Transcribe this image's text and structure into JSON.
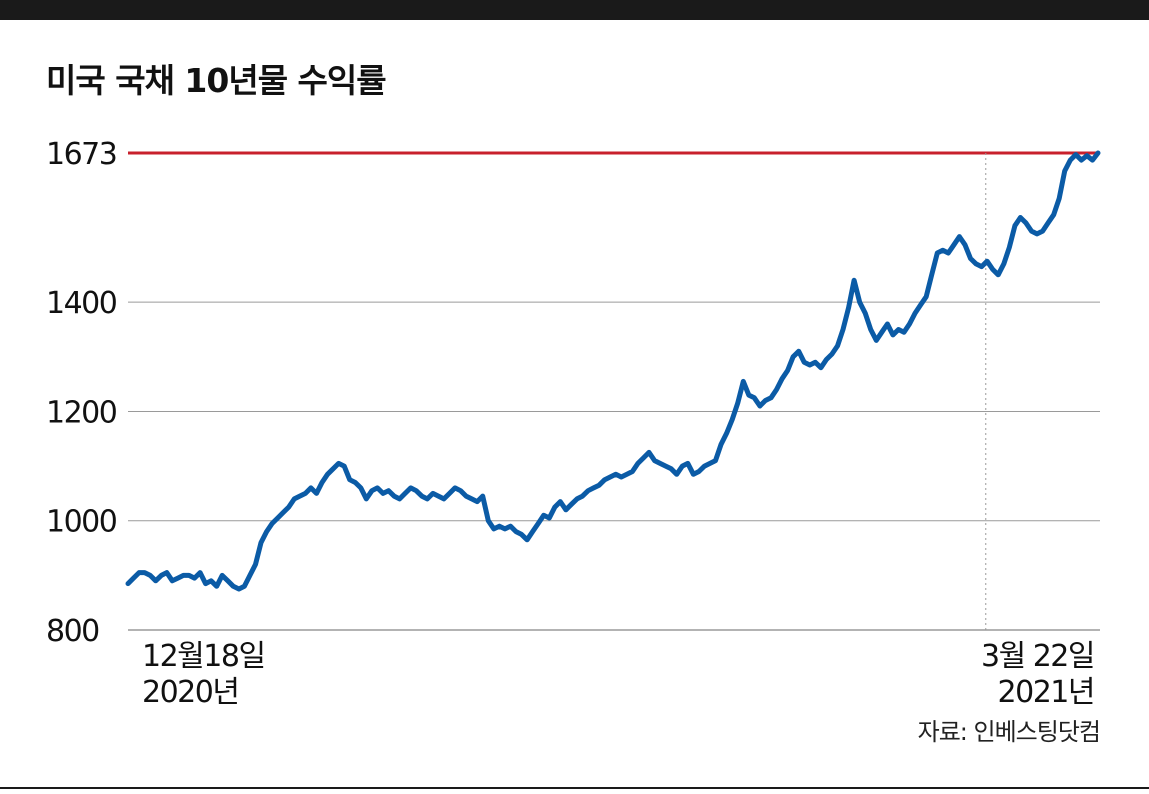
{
  "colors": {
    "line": "#0b5ba6",
    "reference_line": "#c8202c",
    "grid": "#9a9a9a",
    "text": "#111111",
    "top_bar": "#1a1a1a"
  },
  "source": "자료: 인베스팅닷컴",
  "chart_data": {
    "type": "line",
    "title": "미국 국채 10년물 수익률",
    "xlabel": "",
    "ylabel": "",
    "ylim": [
      800,
      1700
    ],
    "yticks": [
      {
        "value": 800,
        "label": "800"
      },
      {
        "value": 1000,
        "label": "1000"
      },
      {
        "value": 1200,
        "label": "1200"
      },
      {
        "value": 1400,
        "label": "1400"
      },
      {
        "value": 1673,
        "label": "1673"
      }
    ],
    "x_labels": [
      {
        "index": 0,
        "line1": "12월18일",
        "line2": "2020년"
      },
      {
        "index": 158,
        "line1": "3월 22일",
        "line2": "2021년"
      }
    ],
    "reference_line": {
      "value": 1673,
      "label": "1673"
    },
    "legend": "none",
    "grid": true,
    "series": [
      {
        "values": [
          885,
          895,
          905,
          905,
          900,
          890,
          900,
          905,
          890,
          895,
          900,
          900,
          895,
          905,
          885,
          890,
          880,
          900,
          890,
          880,
          875,
          880,
          900,
          920,
          960,
          980,
          995,
          1005,
          1015,
          1025,
          1040,
          1045,
          1050,
          1060,
          1050,
          1070,
          1085,
          1095,
          1105,
          1100,
          1075,
          1070,
          1060,
          1040,
          1055,
          1060,
          1050,
          1055,
          1045,
          1040,
          1050,
          1060,
          1055,
          1045,
          1040,
          1050,
          1045,
          1040,
          1050,
          1060,
          1055,
          1045,
          1040,
          1035,
          1045,
          1000,
          985,
          990,
          985,
          990,
          980,
          975,
          965,
          980,
          995,
          1010,
          1005,
          1025,
          1035,
          1020,
          1030,
          1040,
          1045,
          1055,
          1060,
          1065,
          1075,
          1080,
          1085,
          1080,
          1085,
          1090,
          1105,
          1115,
          1125,
          1110,
          1105,
          1100,
          1095,
          1085,
          1100,
          1105,
          1085,
          1090,
          1100,
          1105,
          1110,
          1140,
          1160,
          1185,
          1215,
          1255,
          1230,
          1225,
          1210,
          1220,
          1225,
          1240,
          1260,
          1275,
          1300,
          1310,
          1290,
          1285,
          1290,
          1280,
          1295,
          1305,
          1320,
          1350,
          1390,
          1440,
          1400,
          1380,
          1350,
          1330,
          1345,
          1360,
          1340,
          1350,
          1345,
          1360,
          1380,
          1395,
          1410,
          1450,
          1490,
          1495,
          1490,
          1505,
          1520,
          1505,
          1480,
          1470,
          1465,
          1475,
          1460,
          1450,
          1470,
          1500,
          1540,
          1555,
          1545,
          1530,
          1525,
          1530,
          1545,
          1560,
          1590,
          1640,
          1660,
          1670,
          1660,
          1668,
          1660,
          1673
        ]
      }
    ]
  }
}
